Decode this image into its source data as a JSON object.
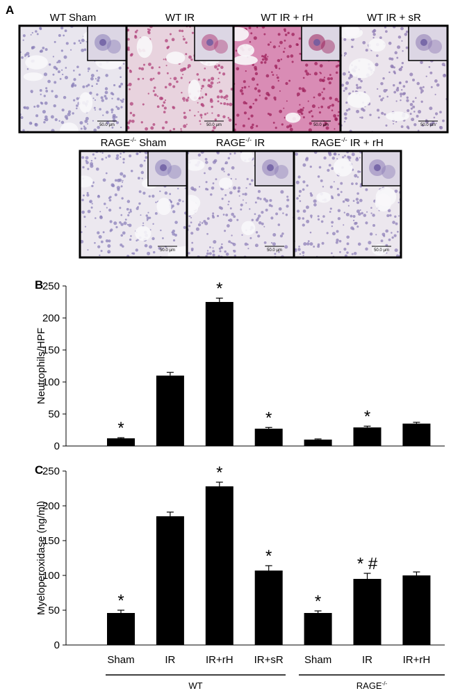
{
  "panel_a": {
    "label": "A",
    "images": [
      {
        "label": [
          "WT Sham"
        ],
        "scale": "50.0 µm",
        "tone": "#e9e6ee",
        "dots": "#8a7fb8"
      },
      {
        "label": [
          "WT IR"
        ],
        "scale": "50.0 µm",
        "tone": "#e8d3de",
        "dots": "#b0417a"
      },
      {
        "label": [
          "WT IR + rH"
        ],
        "scale": "50.0 µm",
        "tone": "#d98cb5",
        "dots": "#9c1f5a"
      },
      {
        "label": [
          "WT IR + sR"
        ],
        "scale": "50.0 µm",
        "tone": "#ebe4ec",
        "dots": "#8e7bb3"
      },
      {
        "label": [
          "RAGE",
          "-/-",
          " Sham"
        ],
        "scale": "50.0 µm",
        "tone": "#ece8ef",
        "dots": "#8c82bb"
      },
      {
        "label": [
          "RAGE",
          "-/-",
          " IR"
        ],
        "scale": "50.0 µm",
        "tone": "#ebe6ee",
        "dots": "#8f80b8"
      },
      {
        "label": [
          "RAGE",
          "-/-",
          " IR + rH"
        ],
        "scale": "50.0 µm",
        "tone": "#ece7ee",
        "dots": "#8f80b8"
      }
    ]
  },
  "chart_data": [
    {
      "type": "bar",
      "panel": "B",
      "ylabel": "Neutrophils/HPF",
      "values": [
        12,
        110,
        225,
        27,
        10,
        29,
        35
      ],
      "errors": [
        1,
        5,
        6,
        2,
        1,
        2,
        2
      ],
      "annotations": [
        "*",
        null,
        "*",
        "*",
        null,
        "*",
        null
      ],
      "color": "#000000",
      "ylim": [
        0,
        250
      ],
      "yticks": [
        0,
        50,
        100,
        150,
        200,
        250
      ]
    },
    {
      "type": "bar",
      "panel": "C",
      "ylabel": "Myeloperoxidase (ng/ml)",
      "categories": [
        "Sham",
        "IR",
        "IR+rH",
        "IR+sR",
        "Sham",
        "IR",
        "IR+rH"
      ],
      "values": [
        46,
        185,
        228,
        107,
        46,
        95,
        100
      ],
      "errors": [
        4,
        6,
        6,
        7,
        3,
        8,
        5
      ],
      "annotations": [
        "*",
        null,
        "*",
        "*",
        "*",
        "* #",
        null
      ],
      "groups": [
        [
          "WT"
        ],
        [
          "RAGE",
          "-/-"
        ]
      ],
      "color": "#000000",
      "ylim": [
        0,
        250
      ],
      "yticks": [
        0,
        50,
        100,
        150,
        200,
        250
      ]
    }
  ]
}
